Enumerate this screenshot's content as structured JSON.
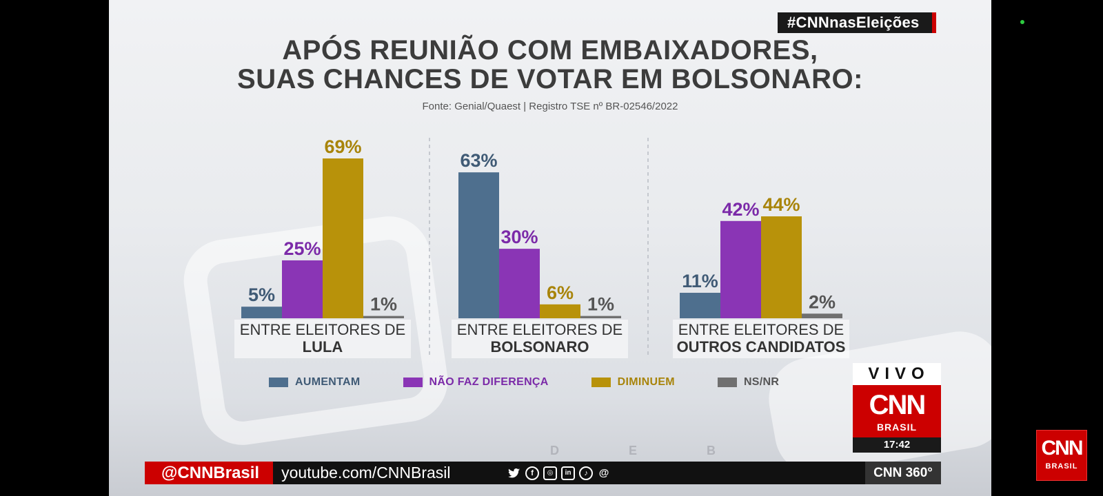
{
  "overlay": {
    "hashtag": "#CNNnasEleições",
    "live_label": "VIVO",
    "logo_text": "CNN",
    "logo_sub": "BRASIL",
    "time": "17:42",
    "faded_letters": [
      "D",
      "E",
      "B"
    ],
    "ticker_handle": "@CNNBrasil",
    "ticker_url": "youtube.com/CNNBrasil",
    "social_icons": [
      "twitter-icon",
      "facebook-icon",
      "instagram-icon",
      "linkedin-icon",
      "tiktok-icon",
      "threads-icon"
    ],
    "ticker_right": "CNN 360°",
    "corner_logo_text": "CNN",
    "corner_logo_sub": "BRASIL"
  },
  "chart_data": {
    "type": "bar",
    "title_line1": "APÓS REUNIÃO COM EMBAIXADORES,",
    "title_line2": "SUAS CHANCES DE VOTAR EM BOLSONARO:",
    "source": "Fonte: Genial/Quaest | Registro TSE nº BR-02546/2022",
    "categories": [
      {
        "line1": "ENTRE ELEITORES DE",
        "line2": "LULA"
      },
      {
        "line1": "ENTRE ELEITORES DE",
        "line2": "BOLSONARO"
      },
      {
        "line1": "ENTRE ELEITORES DE",
        "line2": "OUTROS CANDIDATOS"
      }
    ],
    "series": [
      {
        "name": "AUMENTAM",
        "color": "#4e6f8e",
        "label_color": "#3f5a75",
        "values": [
          5,
          63,
          11
        ]
      },
      {
        "name": "NÃO FAZ DIFERENÇA",
        "color": "#8a35b5",
        "label_color": "#7b2aa8",
        "values": [
          25,
          30,
          42
        ]
      },
      {
        "name": "DIMINUEM",
        "color": "#b8920a",
        "label_color": "#a8840a",
        "values": [
          69,
          6,
          44
        ]
      },
      {
        "name": "NS/NR",
        "color": "#707070",
        "label_color": "#555555",
        "values": [
          1,
          1,
          2
        ]
      }
    ],
    "value_suffix": "%",
    "ylim": [
      0,
      69
    ],
    "legend_position": "bottom",
    "grid": false
  }
}
